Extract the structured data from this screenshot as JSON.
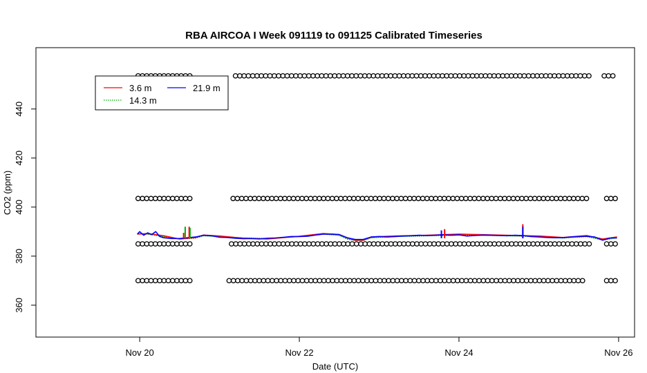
{
  "chart_data": {
    "type": "line",
    "title": "RBA AIRCOA I  Week 091119 to 091125  Calibrated Timeseries",
    "xlabel": "Date (UTC)",
    "ylabel": "CO2 (ppm)",
    "xlim": [
      18.7,
      26.2
    ],
    "ylim": [
      347,
      465
    ],
    "x_ticks": [
      {
        "value": 20,
        "label": "Nov 20"
      },
      {
        "value": 22,
        "label": "Nov 22"
      },
      {
        "value": 24,
        "label": "Nov 24"
      },
      {
        "value": 26,
        "label": "Nov 26"
      }
    ],
    "y_ticks": [
      {
        "value": 360,
        "label": "360"
      },
      {
        "value": 380,
        "label": "380"
      },
      {
        "value": 400,
        "label": "400"
      },
      {
        "value": 420,
        "label": "420"
      },
      {
        "value": 440,
        "label": "440"
      }
    ],
    "legend": {
      "position": "top-left",
      "entries": [
        {
          "label": "3.6 m",
          "color": "#ff0000",
          "dash": "solid"
        },
        {
          "label": "21.9 m",
          "color": "#0000ff",
          "dash": "solid"
        },
        {
          "label": "14.3 m",
          "color": "#00aa00",
          "dash": "dotted"
        }
      ]
    },
    "series": [
      {
        "name": "21.9 m",
        "color": "#0000ff",
        "x": [
          19.97,
          20.0,
          20.05,
          20.1,
          20.15,
          20.2,
          20.25,
          20.3,
          20.4,
          20.5,
          20.6,
          20.7,
          20.8,
          20.9,
          21.0,
          21.1,
          21.2,
          21.3,
          21.4,
          21.5,
          21.6,
          21.7,
          21.8,
          21.9,
          22.0,
          22.1,
          22.2,
          22.3,
          22.4,
          22.5,
          22.6,
          22.7,
          22.8,
          22.9,
          23.0,
          23.1,
          23.2,
          23.3,
          23.4,
          23.5,
          23.6,
          23.7,
          23.8,
          23.9,
          24.0,
          24.1,
          24.2,
          24.3,
          24.4,
          24.5,
          24.6,
          24.7,
          24.8,
          24.9,
          25.0,
          25.1,
          25.2,
          25.3,
          25.4,
          25.5,
          25.6,
          25.7,
          25.8,
          25.9,
          25.98
        ],
        "y": [
          389,
          390,
          388.5,
          389.5,
          388.8,
          390,
          388,
          387.5,
          387.2,
          387.2,
          387.5,
          387.8,
          388.5,
          388.3,
          387.7,
          387.6,
          387.3,
          387.1,
          387.2,
          387.0,
          387.3,
          387.4,
          387.7,
          388.0,
          388.0,
          388.1,
          388.6,
          389.0,
          389.0,
          388.8,
          387.5,
          386.8,
          386.8,
          387.8,
          388.0,
          387.8,
          388.0,
          388.2,
          388.3,
          388.5,
          388.4,
          388.5,
          388.7,
          388.5,
          388.7,
          388.2,
          388.4,
          388.6,
          388.5,
          388.4,
          388.3,
          388.5,
          388.4,
          388.0,
          387.8,
          387.6,
          387.5,
          387.5,
          387.8,
          388.0,
          388.1,
          387.8,
          386.5,
          387.4,
          387.4
        ]
      },
      {
        "name": "14.3 m",
        "color": "#00aa00",
        "x": [
          19.97,
          20.1,
          20.3,
          20.5,
          20.6,
          20.7,
          20.8,
          21.0,
          21.3,
          21.6,
          22.0,
          22.3,
          22.5,
          22.6,
          22.7,
          22.8,
          22.9,
          23.2,
          23.6,
          24.0,
          24.5,
          25.0,
          25.3,
          25.6,
          25.8,
          25.98
        ],
        "y": [
          389.2,
          389.0,
          388.0,
          387.0,
          387.2,
          387.4,
          388.3,
          388.0,
          387.4,
          387.2,
          388.0,
          389.0,
          388.5,
          387.0,
          386.4,
          386.4,
          387.5,
          388.0,
          388.3,
          388.6,
          388.4,
          388.0,
          387.4,
          388.0,
          386.6,
          387.5
        ]
      },
      {
        "name": "3.6 m",
        "color": "#ff0000",
        "x": [
          19.97,
          20.1,
          20.3,
          20.5,
          20.6,
          20.7,
          20.8,
          21.0,
          21.3,
          21.6,
          22.0,
          22.3,
          22.5,
          22.6,
          22.7,
          22.8,
          22.9,
          23.2,
          23.6,
          24.0,
          24.5,
          25.0,
          25.3,
          25.6,
          25.8,
          25.98
        ],
        "y": [
          389.0,
          389.2,
          388.3,
          387.0,
          387.3,
          387.6,
          388.6,
          388.2,
          387.3,
          387.0,
          388.1,
          389.2,
          388.8,
          387.5,
          386.5,
          386.5,
          387.8,
          388.2,
          388.5,
          389.0,
          388.6,
          388.2,
          387.6,
          388.4,
          387.0,
          387.8
        ]
      }
    ],
    "spikes": [
      {
        "series": "3.6 m",
        "x": 20.55,
        "y_top": 389.5
      },
      {
        "series": "14.3 m",
        "x": 20.57,
        "y_top": 392.0
      },
      {
        "series": "3.6 m",
        "x": 20.62,
        "y_top": 392.0
      },
      {
        "series": "14.3 m",
        "x": 20.63,
        "y_top": 391.5
      },
      {
        "series": "3.6 m",
        "x": 23.82,
        "y_top": 391.0
      },
      {
        "series": "21.9 m",
        "x": 23.78,
        "y_top": 390.5
      },
      {
        "series": "3.6 m",
        "x": 24.8,
        "y_top": 393.0
      },
      {
        "series": "21.9 m",
        "x": 24.8,
        "y_top": 392.0
      }
    ],
    "calibration_levels": [
      {
        "y": 453.5,
        "x_ranges": [
          [
            19.98,
            20.65
          ],
          [
            21.2,
            25.65
          ],
          [
            25.82,
            25.98
          ]
        ]
      },
      {
        "y": 403.5,
        "x_ranges": [
          [
            19.98,
            20.65
          ],
          [
            21.17,
            25.65
          ],
          [
            25.85,
            25.98
          ]
        ]
      },
      {
        "y": 385.0,
        "x_ranges": [
          [
            19.98,
            20.65
          ],
          [
            21.15,
            25.65
          ],
          [
            25.85,
            25.98
          ]
        ]
      },
      {
        "y": 370.0,
        "x_ranges": [
          [
            19.98,
            20.65
          ],
          [
            21.12,
            25.6
          ],
          [
            25.85,
            25.98
          ]
        ]
      }
    ],
    "grid": false
  }
}
